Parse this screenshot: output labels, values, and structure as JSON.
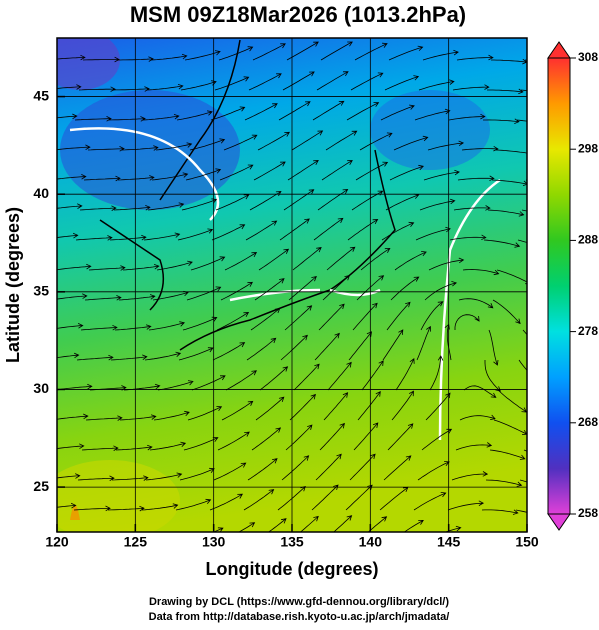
{
  "chart_data": {
    "type": "map",
    "title": "MSM 09Z18Mar2026 (1013.2hPa)",
    "x_label": "Longitude (degrees)",
    "y_label": "Latitude  (degrees)",
    "xlim": [
      120,
      150
    ],
    "xticks": [
      120,
      125,
      130,
      135,
      140,
      145,
      150
    ],
    "ylim": [
      22.7,
      48
    ],
    "yticks": [
      25,
      30,
      35,
      40,
      45
    ],
    "grid": true,
    "colorbar": {
      "lim": [
        258,
        308
      ],
      "ticks": [
        258,
        268,
        278,
        288,
        298,
        308
      ]
    },
    "footer": [
      "Drawing by DCL (https://www.gfd-dennou.org/library/dcl/)",
      "Data from http://database.rish.kyoto-u.ac.jp/arch/jmadata/"
    ]
  }
}
